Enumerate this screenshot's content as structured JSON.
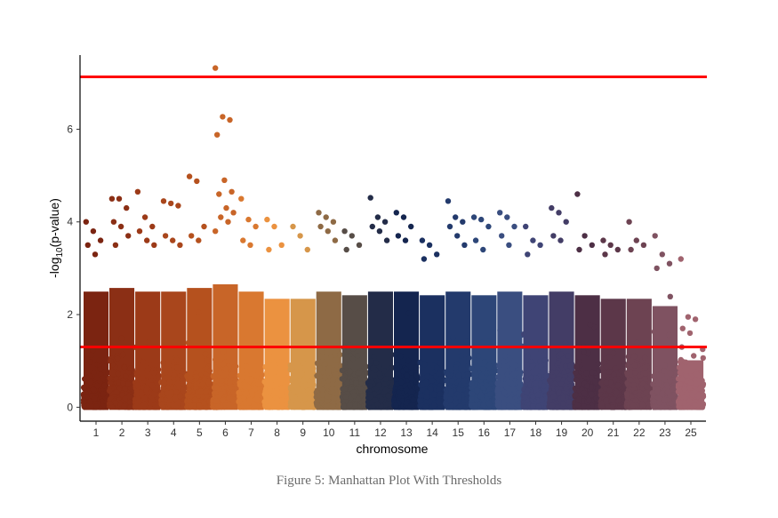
{
  "caption": "Figure 5: Manhattan Plot With Thresholds",
  "chart_data": {
    "type": "scatter",
    "title": "",
    "xlabel": "chromosome",
    "ylabel": "-log10(p-value)",
    "ylim": [
      -0.3,
      7.6
    ],
    "yticks": [
      0,
      2,
      4,
      6
    ],
    "grid": false,
    "legend": "none",
    "thresholds": [
      {
        "value": 7.13,
        "color": "#ff0000"
      },
      {
        "value": 1.3,
        "color": "#ff0000"
      }
    ],
    "categories": [
      "1",
      "2",
      "3",
      "4",
      "5",
      "6",
      "7",
      "8",
      "9",
      "10",
      "11",
      "12",
      "13",
      "14",
      "15",
      "16",
      "17",
      "18",
      "19",
      "20",
      "21",
      "22",
      "23",
      "25"
    ],
    "series": [
      {
        "category": "1",
        "color": "#7b2411",
        "dense_max": 3.2,
        "peaks": [
          4.0,
          3.8,
          3.6,
          3.5,
          3.3
        ]
      },
      {
        "category": "2",
        "color": "#8b2f15",
        "dense_max": 3.3,
        "peaks": [
          4.5,
          4.5,
          4.3,
          4.0,
          3.9,
          3.7,
          3.5
        ]
      },
      {
        "category": "3",
        "color": "#9c3a18",
        "dense_max": 3.2,
        "peaks": [
          4.65,
          4.1,
          3.9,
          3.8,
          3.6,
          3.5
        ]
      },
      {
        "category": "4",
        "color": "#a9461c",
        "dense_max": 3.2,
        "peaks": [
          4.45,
          4.4,
          4.35,
          3.7,
          3.6,
          3.5
        ]
      },
      {
        "category": "5",
        "color": "#b5511e",
        "dense_max": 3.3,
        "peaks": [
          4.98,
          4.88,
          3.9,
          3.7,
          3.6
        ]
      },
      {
        "category": "6",
        "color": "#c86528",
        "dense_max": 3.4,
        "peaks": [
          7.32,
          6.27,
          6.2,
          5.88,
          4.9,
          4.65,
          4.6,
          4.3,
          4.2,
          4.1,
          4.0,
          3.8
        ]
      },
      {
        "category": "7",
        "color": "#d97830",
        "dense_max": 3.2,
        "peaks": [
          4.5,
          4.05,
          3.9,
          3.6,
          3.5
        ]
      },
      {
        "category": "8",
        "color": "#eb9240",
        "dense_max": 3.0,
        "peaks": [
          4.05,
          3.9,
          3.5,
          3.4
        ]
      },
      {
        "category": "9",
        "color": "#d6964a",
        "dense_max": 3.0,
        "peaks": [
          3.9,
          3.7,
          3.4
        ]
      },
      {
        "category": "10",
        "color": "#8e6a45",
        "dense_max": 3.2,
        "peaks": [
          4.2,
          4.1,
          4.0,
          3.9,
          3.8,
          3.6
        ]
      },
      {
        "category": "11",
        "color": "#574d47",
        "dense_max": 3.1,
        "peaks": [
          3.8,
          3.7,
          3.5,
          3.4
        ]
      },
      {
        "category": "12",
        "color": "#232c48",
        "dense_max": 3.2,
        "peaks": [
          4.52,
          4.1,
          4.0,
          3.9,
          3.8,
          3.6
        ]
      },
      {
        "category": "13",
        "color": "#14254f",
        "dense_max": 3.2,
        "peaks": [
          4.2,
          4.1,
          3.9,
          3.7,
          3.6
        ]
      },
      {
        "category": "14",
        "color": "#1b3060",
        "dense_max": 3.1,
        "peaks": [
          3.6,
          3.5,
          3.3,
          3.2
        ]
      },
      {
        "category": "15",
        "color": "#233a6c",
        "dense_max": 3.2,
        "peaks": [
          4.45,
          4.1,
          4.0,
          3.9,
          3.7,
          3.5
        ]
      },
      {
        "category": "16",
        "color": "#2d4678",
        "dense_max": 3.1,
        "peaks": [
          4.1,
          4.05,
          3.9,
          3.6,
          3.4
        ]
      },
      {
        "category": "17",
        "color": "#3a4e80",
        "dense_max": 3.2,
        "peaks": [
          4.2,
          4.1,
          3.9,
          3.7,
          3.5
        ]
      },
      {
        "category": "18",
        "color": "#3f4475",
        "dense_max": 3.1,
        "peaks": [
          3.9,
          3.6,
          3.5,
          3.3
        ]
      },
      {
        "category": "19",
        "color": "#433d66",
        "dense_max": 3.2,
        "peaks": [
          4.3,
          4.2,
          4.0,
          3.7,
          3.6
        ]
      },
      {
        "category": "20",
        "color": "#4d2f45",
        "dense_max": 3.1,
        "peaks": [
          4.6,
          3.7,
          3.5,
          3.4
        ]
      },
      {
        "category": "21",
        "color": "#5c3749",
        "dense_max": 3.0,
        "peaks": [
          3.6,
          3.5,
          3.4,
          3.3
        ]
      },
      {
        "category": "22",
        "color": "#6d4352",
        "dense_max": 3.0,
        "peaks": [
          4.0,
          3.6,
          3.5,
          3.4
        ]
      },
      {
        "category": "23",
        "color": "#7f5261",
        "dense_max": 2.8,
        "peaks": [
          3.7,
          3.3,
          3.1,
          3.0
        ]
      },
      {
        "category": "25",
        "color": "#a0636e",
        "dense_max": 1.3,
        "peaks": [
          3.2,
          1.95,
          1.9,
          1.7,
          1.6
        ]
      }
    ]
  }
}
